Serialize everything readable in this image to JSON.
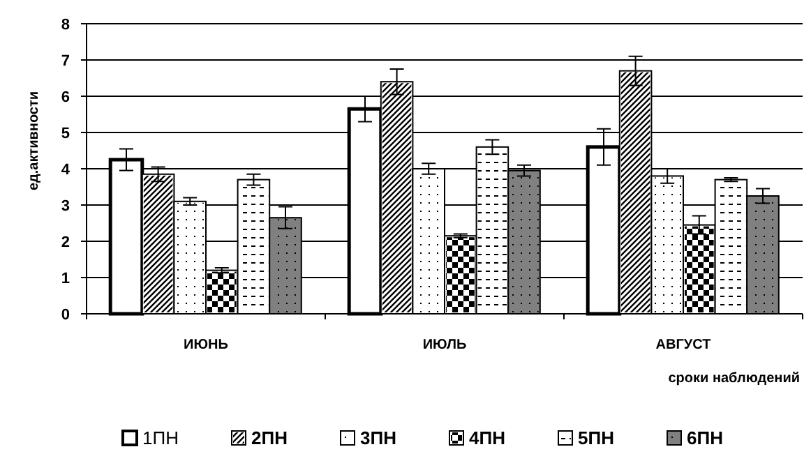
{
  "chart_data": {
    "type": "bar",
    "ylabel": "ед.активности",
    "xlabel": "сроки наблюдений",
    "categories": [
      "ИЮНЬ",
      "ИЮЛЬ",
      "АВГУСТ"
    ],
    "series": [
      {
        "name": "1ПН",
        "color": "#ffffff",
        "values": [
          4.25,
          5.65,
          4.6
        ],
        "errors": [
          0.3,
          0.35,
          0.5
        ]
      },
      {
        "name": "2ПН",
        "color": "#ffffff",
        "values": [
          3.85,
          6.4,
          6.7
        ],
        "errors": [
          0.2,
          0.35,
          0.4
        ]
      },
      {
        "name": "3ПН",
        "color": "#ffffff",
        "values": [
          3.1,
          4.0,
          3.8
        ],
        "errors": [
          0.1,
          0.15,
          0.2
        ]
      },
      {
        "name": "4ПН",
        "color": "#ffffff",
        "values": [
          1.2,
          2.15,
          2.45
        ],
        "errors": [
          0.07,
          0.05,
          0.25
        ]
      },
      {
        "name": "5ПН",
        "color": "#ffffff",
        "values": [
          3.7,
          4.6,
          3.7
        ],
        "errors": [
          0.15,
          0.2,
          0.05
        ]
      },
      {
        "name": "6ПН",
        "color": "#808080",
        "values": [
          2.65,
          3.95,
          3.25
        ],
        "errors": [
          0.3,
          0.15,
          0.2
        ]
      }
    ],
    "ylim": [
      0,
      8
    ],
    "yticks": [
      0,
      1,
      2,
      3,
      4,
      5,
      6,
      7,
      8
    ],
    "grid": "y",
    "legend": "bottom"
  }
}
